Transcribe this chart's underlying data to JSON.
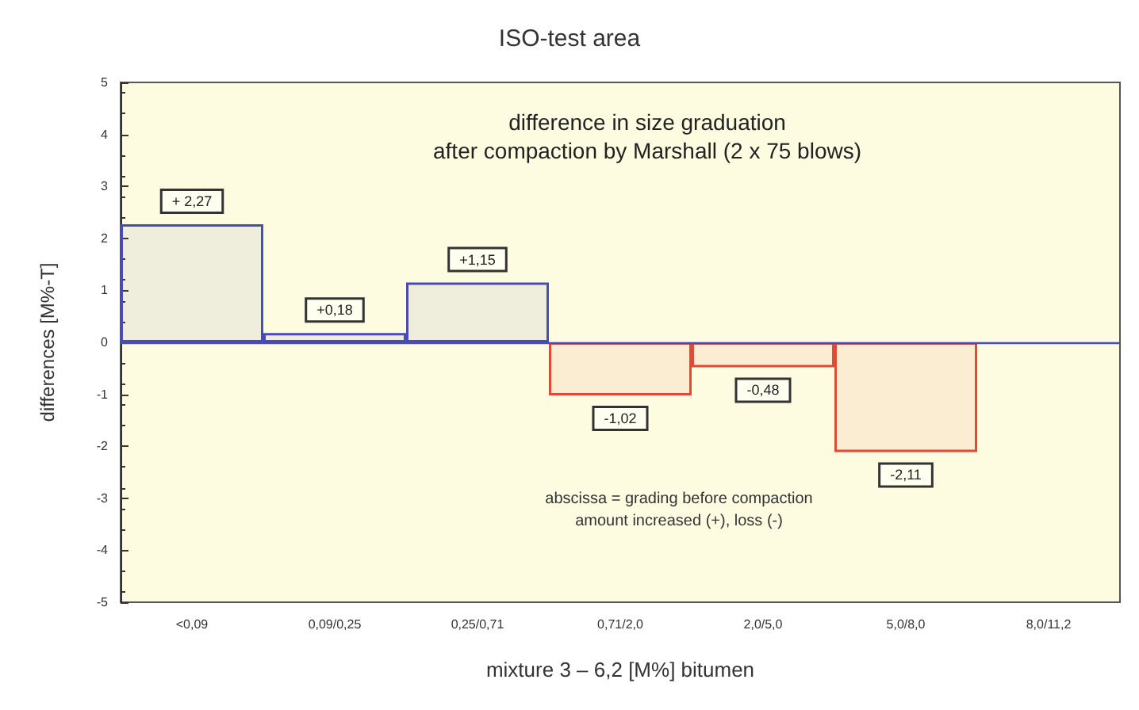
{
  "chart_data": {
    "type": "bar",
    "title": "ISO-test area",
    "xlabel": "mixture 3 – 6,2 [M%] bitumen",
    "ylabel": "differences [M%-T]",
    "categories": [
      "<0,09",
      "0,09/0,25",
      "0,25/0,71",
      "0,71/2,0",
      "2,0/5,0",
      "5,0/8,0",
      "8,0/11,2"
    ],
    "values": [
      2.27,
      0.18,
      1.15,
      -1.02,
      -0.48,
      -2.11,
      null
    ],
    "colors": [
      "#4a4ab8",
      "#4a4ab8",
      "#4a4ab8",
      "#e04a36",
      "#e04a36",
      "#e04a36",
      "#e04a36"
    ],
    "value_labels": [
      "+ 2,27",
      "+0,18",
      "+1,15",
      "-1,02",
      "-0,48",
      "-2,11",
      null
    ],
    "ref_lines": [
      {
        "axis": "y",
        "value": 0,
        "color": "#4a4ab8"
      }
    ],
    "ylim": [
      -5,
      5
    ],
    "yticks": [
      -5,
      -4,
      -3,
      -2,
      -1,
      0,
      1,
      2,
      3,
      4,
      5
    ],
    "grid": false,
    "annotations": [
      "difference in size graduation\nafter compaction by Marshall (2 x 75 blows)",
      "abscissa = grading before compaction\namount increased (+), loss (-)"
    ]
  }
}
